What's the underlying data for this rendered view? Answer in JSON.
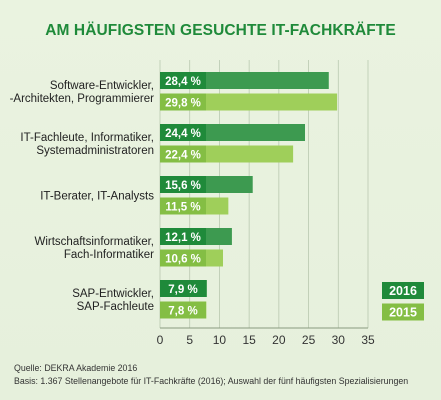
{
  "title": "AM HÄUFIGSTEN GESUCHTE IT-FACHKRÄFTE",
  "source": "Quelle: DEKRA Akademie 2016",
  "basis": "Basis: 1.367 Stellenangebote für IT-Fachkräfte (2016); Auswahl der fünf häufigsten Spezialisierungen",
  "colors": {
    "series_2016": "#1f8a3a",
    "series_2016_bar": "#3d9a50",
    "series_2015": "#84be44",
    "series_2015_bar": "#9fcf5a",
    "title": "#1f8a3a",
    "background": "#e8f2de"
  },
  "chart_data": {
    "type": "bar",
    "orientation": "horizontal",
    "title": "AM HÄUFIGSTEN GESUCHTE IT-FACHKRÄFTE",
    "categories": [
      [
        "Software-Entwickler,",
        "-Architekten, Programmierer"
      ],
      [
        "IT-Fachleute, Informatiker,",
        "Systemadministratoren"
      ],
      [
        "IT-Berater, IT-Analysts"
      ],
      [
        "Wirtschaftsinformatiker,",
        "Fach-Informatiker"
      ],
      [
        "SAP-Entwickler,",
        "SAP-Fachleute"
      ]
    ],
    "series": [
      {
        "name": "2016",
        "values": [
          28.4,
          24.4,
          15.6,
          12.1,
          7.9
        ],
        "labels": [
          "28,4 %",
          "24,4 %",
          "15,6 %",
          "12,1 %",
          "7,9 %"
        ]
      },
      {
        "name": "2015",
        "values": [
          29.8,
          22.4,
          11.5,
          10.6,
          7.8
        ],
        "labels": [
          "29,8 %",
          "22,4 %",
          "11,5 %",
          "10,6 %",
          "7,8 %"
        ]
      }
    ],
    "xlim": [
      0,
      35
    ],
    "xticks": [
      "0",
      "5",
      "10",
      "15",
      "20",
      "25",
      "30",
      "35"
    ],
    "grid": true,
    "legend_position": "right"
  }
}
